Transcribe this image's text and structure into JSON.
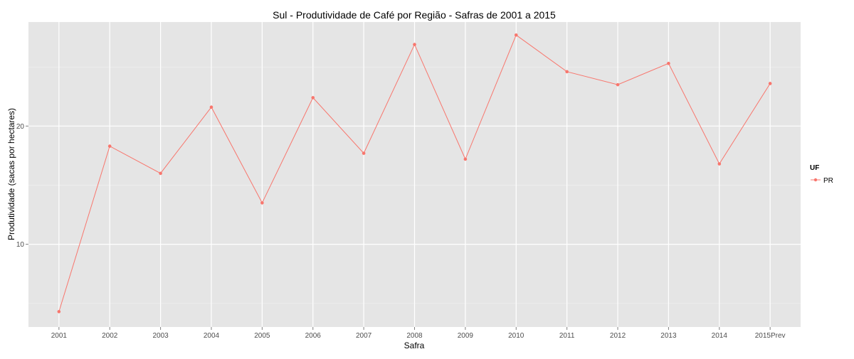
{
  "chart_data": {
    "type": "line",
    "title": "Sul  - Produtividade de Café por Região - Safras de 2001 a 2015",
    "xlabel": "Safra",
    "ylabel": "Produtividade (sacas por hectares)",
    "categories": [
      "2001",
      "2002",
      "2003",
      "2004",
      "2005",
      "2006",
      "2007",
      "2008",
      "2009",
      "2010",
      "2011",
      "2012",
      "2013",
      "2014",
      "2015Prev"
    ],
    "ylim": [
      3.0,
      28.8
    ],
    "y_ticks": [
      10,
      20
    ],
    "y_tick_labels": [
      "10",
      "20"
    ],
    "grid": true,
    "legend": {
      "title": "UF",
      "position": "right"
    },
    "series": [
      {
        "name": "PR",
        "color": "#f8766d",
        "values": [
          4.3,
          18.3,
          16.0,
          21.6,
          13.5,
          22.4,
          17.7,
          26.9,
          17.2,
          27.7,
          24.6,
          23.5,
          25.3,
          16.8,
          23.6
        ]
      }
    ]
  }
}
